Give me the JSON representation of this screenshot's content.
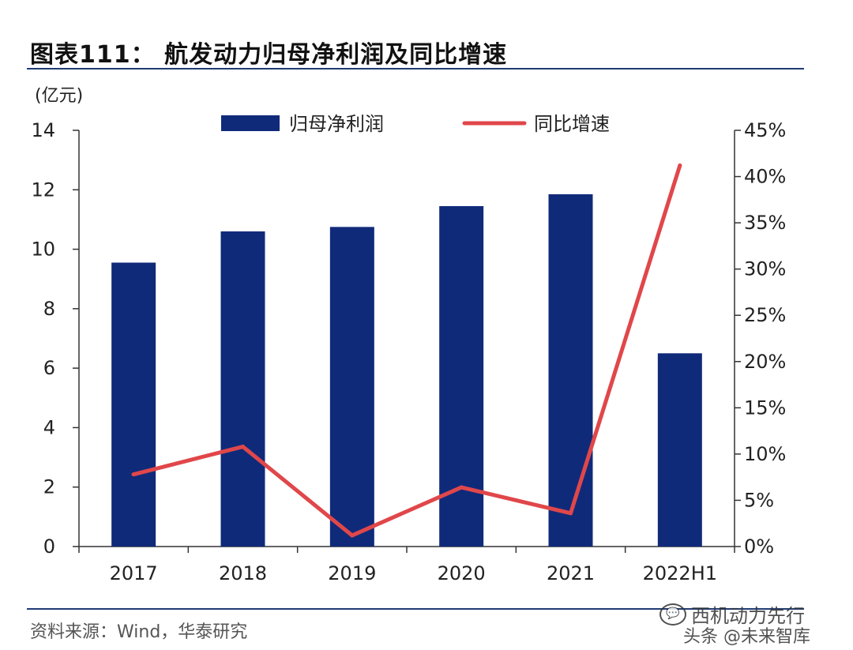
{
  "title": "图表111： 航发动力归母净利润及同比增速",
  "source": "资料来源：Wind，华泰研究",
  "watermark": {
    "line1": "西机动力先行",
    "line2": "头条 @未来智库"
  },
  "colors": {
    "bar": "#102a7a",
    "line": "#e0474a",
    "axis": "#333333",
    "rule": "#1f3b74"
  },
  "chart_data": {
    "type": "bar",
    "title": "航发动力归母净利润及同比增速",
    "categories": [
      "2017",
      "2018",
      "2019",
      "2020",
      "2021",
      "2022H1"
    ],
    "y_unit_label": "(亿元)",
    "ylim": [
      0,
      14
    ],
    "yticks": [
      0,
      2,
      4,
      6,
      8,
      10,
      12,
      14
    ],
    "y2lim": [
      0,
      45
    ],
    "y2ticks": [
      "0%",
      "5%",
      "10%",
      "15%",
      "20%",
      "25%",
      "30%",
      "35%",
      "40%",
      "45%"
    ],
    "series": [
      {
        "name": "归母净利润",
        "type": "bar",
        "axis": "left",
        "values": [
          9.55,
          10.6,
          10.75,
          11.45,
          11.85,
          6.5
        ]
      },
      {
        "name": "同比增速",
        "type": "line",
        "axis": "right",
        "values": [
          7.8,
          10.8,
          1.2,
          6.4,
          3.6,
          41.2
        ]
      }
    ],
    "legend": [
      "归母净利润",
      "同比增速"
    ],
    "legend_position": "top"
  }
}
